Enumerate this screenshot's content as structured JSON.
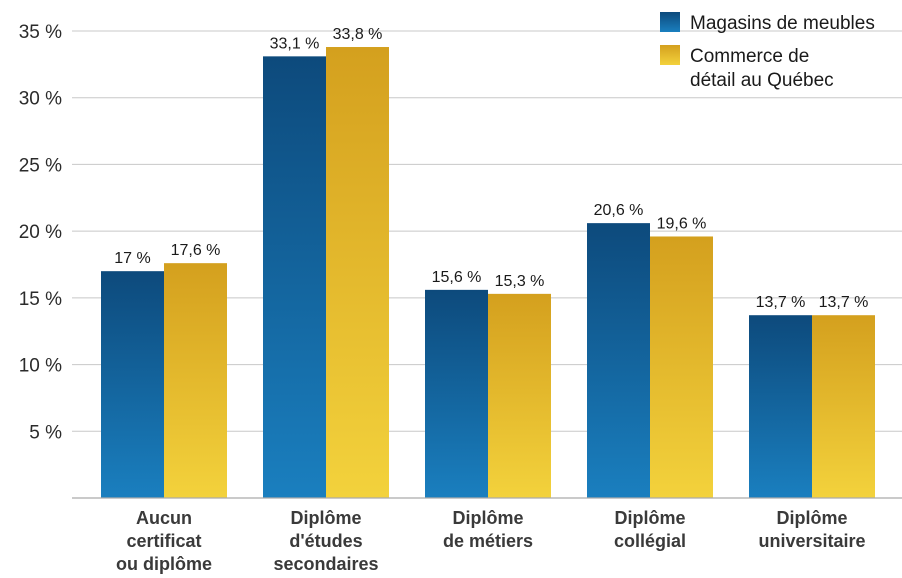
{
  "chart_data": {
    "type": "bar",
    "categories": [
      [
        "Aucun",
        "certificat",
        "ou diplôme"
      ],
      [
        "Diplôme",
        "d'études",
        "secondaires"
      ],
      [
        "Diplôme",
        "de métiers"
      ],
      [
        "Diplôme",
        "collégial"
      ],
      [
        "Diplôme",
        "universitaire"
      ]
    ],
    "series": [
      {
        "name": "Magasins de meubles",
        "values": [
          17.0,
          33.1,
          15.6,
          20.6,
          13.7
        ],
        "labels": [
          "17 %",
          "33,1 %",
          "15,6 %",
          "20,6 %",
          "13,7 %"
        ],
        "color_top": "#0d4a7c",
        "color_bottom": "#1a7fbf"
      },
      {
        "name": "Commerce de détail au Québec",
        "name_lines": [
          "Commerce de",
          "détail au Québec"
        ],
        "values": [
          17.6,
          33.8,
          15.3,
          19.6,
          13.7
        ],
        "labels": [
          "17,6 %",
          "33,8 %",
          "15,3 %",
          "19,6 %",
          "13,7 %"
        ],
        "color_top": "#d4a01e",
        "color_bottom": "#f3d23c"
      }
    ],
    "yticks": [
      5,
      10,
      15,
      20,
      25,
      30,
      35
    ],
    "ytick_labels": [
      "5 %",
      "10 %",
      "15 %",
      "20 %",
      "25 %",
      "30 %",
      "35 %"
    ],
    "ylim": [
      0,
      35
    ],
    "grid": true,
    "legend_position": "top-right",
    "xlabel": "",
    "ylabel": "",
    "title": ""
  }
}
